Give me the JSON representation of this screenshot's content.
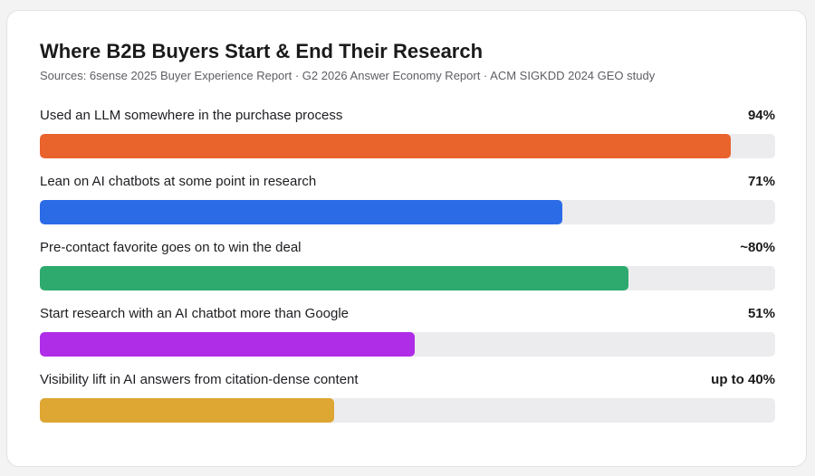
{
  "chart_data": {
    "type": "bar",
    "orientation": "horizontal",
    "title": "Where B2B Buyers Start & End Their Research",
    "subtitle": "Sources: 6sense 2025 Buyer Experience Report · G2 2026 Answer Economy Report · ACM SIGKDD 2024 GEO study",
    "xlim": [
      0,
      100
    ],
    "grid": false,
    "categories": [
      "Used an LLM somewhere in the purchase process",
      "Lean on AI chatbots at some point in research",
      "Pre-contact favorite goes on to win the deal",
      "Start research with an AI chatbot more than Google",
      "Visibility lift in AI answers from citation-dense content"
    ],
    "values": [
      94,
      71,
      80,
      51,
      40
    ],
    "value_labels": [
      "94%",
      "71%",
      "~80%",
      "51%",
      "up to 40%"
    ],
    "colors": [
      "#e9632d",
      "#2b6be6",
      "#2eaa6e",
      "#b02de8",
      "#dea632"
    ],
    "track_color": "#ececee"
  }
}
